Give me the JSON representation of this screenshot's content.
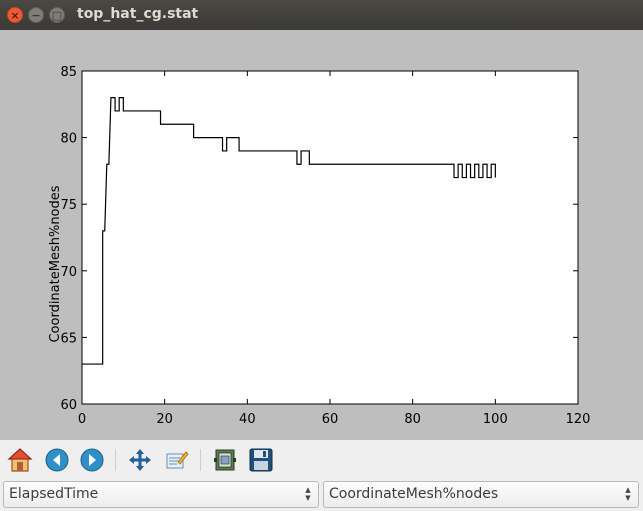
{
  "window": {
    "title": "top_hat_cg.stat"
  },
  "toolbar": {
    "tools": [
      "home-icon",
      "back-icon",
      "forward-icon",
      "pan-icon",
      "zoom-icon",
      "subplots-icon",
      "save-icon"
    ]
  },
  "selectors": {
    "x_variable": "ElapsedTime",
    "y_variable": "CoordinateMesh%nodes"
  },
  "chart_data": {
    "type": "line",
    "title": "",
    "xlabel": "",
    "ylabel": "CoordinateMesh%nodes",
    "xlim": [
      0,
      120
    ],
    "ylim": [
      60,
      85
    ],
    "xticks": [
      "0",
      "20",
      "40",
      "60",
      "80",
      "100",
      "120"
    ],
    "yticks": [
      "60",
      "65",
      "70",
      "75",
      "80",
      "85"
    ],
    "grid": false,
    "line_color": "#000000",
    "series": [
      {
        "x": [
          0,
          5,
          5,
          5.5,
          6,
          6.5,
          7,
          7,
          8,
          8,
          9,
          9,
          10,
          10,
          19,
          19,
          27,
          27,
          34,
          34,
          35,
          35,
          37,
          37,
          38,
          38,
          52,
          52,
          53,
          53,
          55,
          55,
          90,
          90,
          91,
          91,
          92,
          92,
          93,
          93,
          94,
          94,
          95,
          95,
          96,
          96,
          97,
          97,
          98,
          98,
          99,
          99,
          100,
          100
        ],
        "y": [
          63,
          63,
          73,
          73,
          78,
          78,
          83,
          83,
          83,
          82,
          82,
          83,
          83,
          82,
          82,
          81,
          81,
          80,
          80,
          79,
          79,
          80,
          80,
          80,
          80,
          79,
          79,
          78,
          78,
          79,
          79,
          78,
          78,
          77,
          77,
          78,
          78,
          77,
          77,
          78,
          78,
          77,
          77,
          78,
          78,
          77,
          77,
          78,
          78,
          77,
          77,
          78,
          78,
          77
        ]
      }
    ]
  }
}
